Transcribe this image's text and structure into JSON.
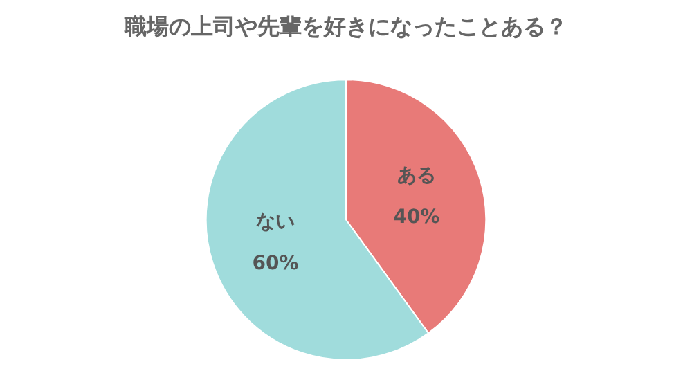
{
  "chart_data": {
    "type": "pie",
    "title": "職場の上司や先輩を好きになったことある？",
    "categories": [
      "ある",
      "ない"
    ],
    "values": [
      40,
      60
    ],
    "colors": [
      "#e87a78",
      "#a0dcdc"
    ],
    "value_labels": [
      "40%",
      "60%"
    ]
  }
}
